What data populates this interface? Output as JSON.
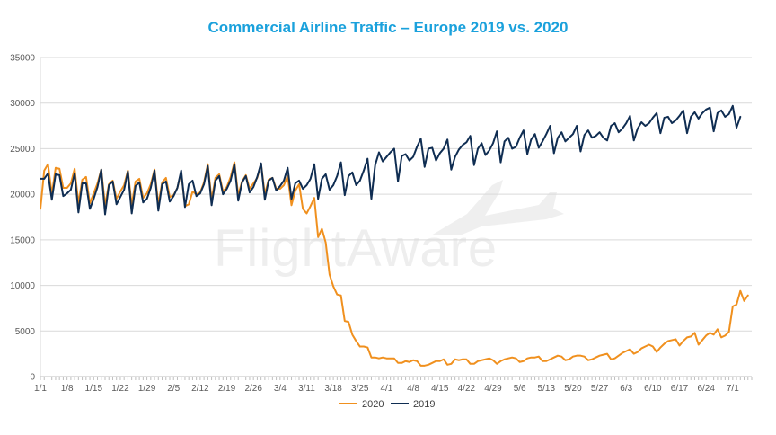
{
  "chart_data": {
    "type": "line",
    "title": "Commercial Airline Traffic – Europe 2019 vs. 2020",
    "watermark": "FlightAware",
    "xlabel": "",
    "ylabel": "",
    "ylim": [
      0,
      35000
    ],
    "yticks": [
      "0",
      "5000",
      "10000",
      "15000",
      "20000",
      "25000",
      "30000",
      "35000"
    ],
    "x_tick_labels": [
      "1/1",
      "1/8",
      "1/15",
      "1/22",
      "1/29",
      "2/5",
      "2/12",
      "2/19",
      "2/26",
      "3/4",
      "3/11",
      "3/18",
      "3/25",
      "4/1",
      "4/8",
      "4/15",
      "4/22",
      "4/29",
      "5/6",
      "5/13",
      "5/20",
      "5/27",
      "6/3",
      "6/10",
      "6/17",
      "6/24",
      "7/1"
    ],
    "x_range_days": [
      1,
      188
    ],
    "grid": true,
    "legend_position": "bottom",
    "series": [
      {
        "name": "2020",
        "color": "#f0901e",
        "values": [
          18400,
          22600,
          23300,
          20000,
          22900,
          22800,
          20700,
          20700,
          21200,
          22800,
          19000,
          21600,
          21900,
          19000,
          20100,
          21200,
          22700,
          18800,
          21100,
          21500,
          19500,
          20300,
          21000,
          22600,
          18800,
          21400,
          21700,
          19600,
          20100,
          21100,
          22700,
          18900,
          21300,
          21800,
          19700,
          19900,
          20700,
          22400,
          18700,
          18900,
          20300,
          20000,
          20200,
          21300,
          23300,
          19400,
          21800,
          22200,
          20300,
          20800,
          21900,
          23500,
          19900,
          21400,
          22100,
          20600,
          21200,
          21800,
          23300,
          20000,
          21600,
          21800,
          20600,
          20600,
          21000,
          22000,
          18800,
          20400,
          21100,
          18400,
          17900,
          18700,
          19600,
          15300,
          16200,
          14700,
          11200,
          9900,
          9000,
          8900,
          6100,
          6000,
          4600,
          3900,
          3300,
          3300,
          3200,
          2100,
          2100,
          2000,
          2100,
          2000,
          2000,
          2000,
          1500,
          1500,
          1700,
          1600,
          1800,
          1700,
          1200,
          1200,
          1300,
          1500,
          1700,
          1700,
          1900,
          1300,
          1400,
          1900,
          1800,
          1900,
          1900,
          1400,
          1400,
          1700,
          1800,
          1900,
          2000,
          1800,
          1400,
          1700,
          1900,
          2000,
          2100,
          2000,
          1600,
          1700,
          2000,
          2100,
          2100,
          2200,
          1700,
          1700,
          1900,
          2100,
          2300,
          2200,
          1800,
          1900,
          2200,
          2300,
          2300,
          2200,
          1800,
          1900,
          2100,
          2300,
          2400,
          2500,
          1900,
          2000,
          2300,
          2600,
          2800,
          3000,
          2500,
          2700,
          3100,
          3300,
          3500,
          3300,
          2700,
          3200,
          3600,
          3900,
          4000,
          4100,
          3400,
          3900,
          4300,
          4400,
          4800,
          3500,
          4000,
          4500,
          4800,
          4600,
          5200,
          4300,
          4500,
          4900,
          7700,
          7900,
          9400,
          8300,
          8900
        ]
      },
      {
        "name": "2019",
        "color": "#0f2d52",
        "values": [
          21700,
          21700,
          22300,
          19400,
          22200,
          22100,
          19800,
          20100,
          20500,
          22300,
          18000,
          21200,
          21200,
          18400,
          19500,
          20800,
          22700,
          17800,
          21000,
          21400,
          18900,
          19700,
          20500,
          22500,
          17900,
          20900,
          21300,
          19100,
          19500,
          20700,
          22600,
          18200,
          21100,
          21400,
          19200,
          19800,
          20700,
          22600,
          18600,
          21100,
          21500,
          19800,
          20100,
          21100,
          23100,
          18800,
          21500,
          22000,
          20000,
          20600,
          21500,
          23300,
          19300,
          21300,
          22000,
          20200,
          20800,
          21900,
          23400,
          19400,
          21500,
          21800,
          20400,
          20900,
          21500,
          22900,
          19500,
          21200,
          21500,
          20600,
          21000,
          21700,
          23300,
          19500,
          21700,
          22200,
          20500,
          21000,
          22000,
          23500,
          19900,
          22000,
          22400,
          21000,
          21500,
          22600,
          23900,
          19500,
          23200,
          24600,
          23600,
          24100,
          24600,
          25000,
          21400,
          24200,
          24400,
          23700,
          24100,
          25200,
          26100,
          23000,
          25000,
          25100,
          23700,
          24500,
          25000,
          26000,
          22700,
          24100,
          24900,
          25400,
          25700,
          26400,
          23200,
          25000,
          25600,
          24300,
          24800,
          25600,
          26900,
          23500,
          25800,
          26200,
          25000,
          25200,
          26200,
          27000,
          24400,
          26000,
          26600,
          25100,
          25800,
          26600,
          27500,
          24500,
          26200,
          26800,
          25800,
          26200,
          26600,
          27500,
          24700,
          26500,
          27000,
          26200,
          26400,
          26800,
          26200,
          25900,
          27500,
          27800,
          26800,
          27200,
          27800,
          28600,
          25900,
          27200,
          27900,
          27500,
          27800,
          28400,
          28900,
          26700,
          28400,
          28500,
          27800,
          28100,
          28600,
          29200,
          26700,
          28500,
          29000,
          28300,
          28900,
          29300,
          29500,
          26900,
          28900,
          29200,
          28500,
          28800,
          29700,
          27300,
          28500
        ]
      }
    ]
  }
}
